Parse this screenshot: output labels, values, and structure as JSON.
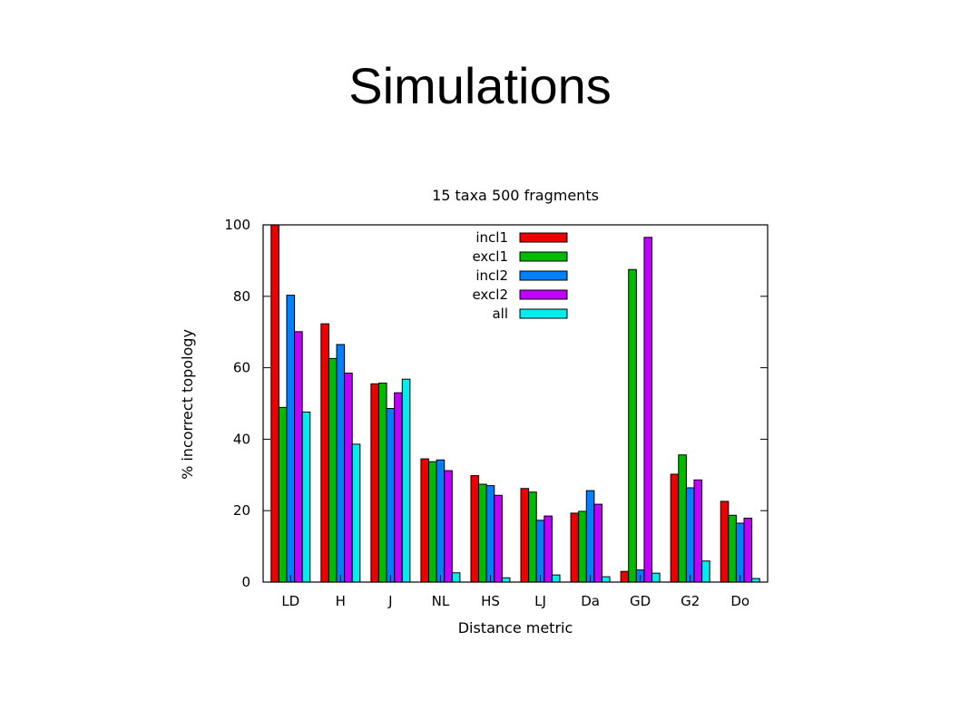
{
  "slide": {
    "title": "Simulations"
  },
  "chart_data": {
    "type": "bar",
    "title": "15 taxa 500 fragments",
    "xlabel": "Distance metric",
    "ylabel": "% incorrect topology",
    "ylim": [
      0,
      100
    ],
    "yticks": [
      0,
      20,
      40,
      60,
      80,
      100
    ],
    "grid": false,
    "legend_position": "top-center",
    "categories": [
      "LD",
      "H",
      "J",
      "NL",
      "HS",
      "LJ",
      "Da",
      "GD",
      "G2",
      "Do"
    ],
    "series": [
      {
        "name": "incl1",
        "color": "#ee0000",
        "values": [
          100,
          72.3,
          55.5,
          34.5,
          29.8,
          26.2,
          19.3,
          3.0,
          30.2,
          22.6
        ]
      },
      {
        "name": "excl1",
        "color": "#00bb00",
        "values": [
          48.9,
          62.6,
          55.7,
          33.7,
          27.4,
          25.2,
          19.8,
          87.5,
          35.6,
          18.7
        ]
      },
      {
        "name": "incl2",
        "color": "#0080ff",
        "values": [
          80.3,
          66.5,
          48.6,
          34.2,
          27.0,
          17.3,
          25.6,
          3.4,
          26.4,
          16.5
        ]
      },
      {
        "name": "excl2",
        "color": "#c000ff",
        "values": [
          70.1,
          58.5,
          53.0,
          31.2,
          24.3,
          18.5,
          21.8,
          96.5,
          28.6,
          17.9
        ]
      },
      {
        "name": "all",
        "color": "#00eeee",
        "values": [
          47.6,
          38.6,
          56.8,
          2.6,
          1.2,
          2.0,
          1.5,
          2.5,
          5.9,
          1.0
        ]
      }
    ]
  }
}
